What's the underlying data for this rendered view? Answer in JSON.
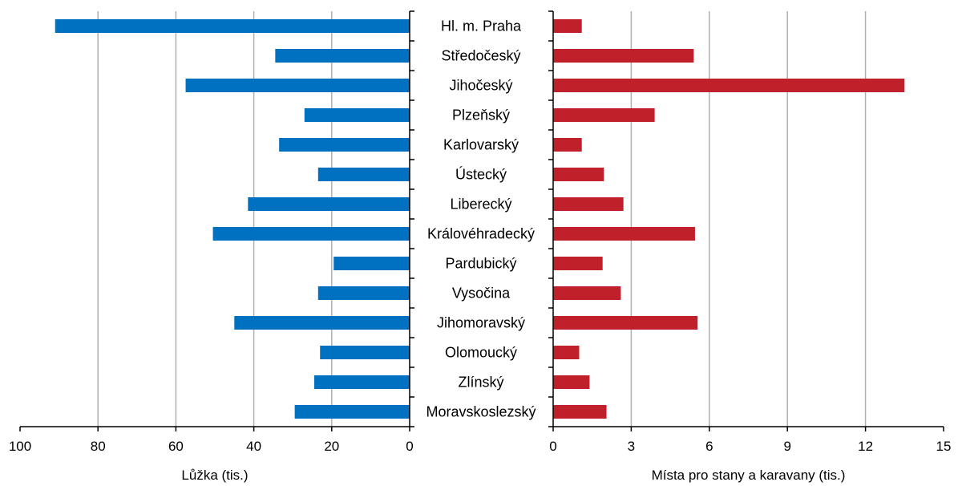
{
  "chart_data": {
    "type": "bar",
    "categories": [
      "Hl. m. Praha",
      "Středočeský",
      "Jihočeský",
      "Plzeňský",
      "Karlovarský",
      "Ústecký",
      "Liberecký",
      "Královéhradecký",
      "Pardubický",
      "Vysočina",
      "Jihomoravský",
      "Olomoucký",
      "Zlínský",
      "Moravskoslezský"
    ],
    "panels": [
      {
        "name": "beds",
        "xlabel": "Lůžka (tis.)",
        "xlim": [
          100,
          0
        ],
        "reversed": true,
        "ticks": [
          100,
          80,
          60,
          40,
          20,
          0
        ],
        "tick_labels": [
          "100",
          "80",
          "60",
          "40",
          "20",
          "0"
        ],
        "color": "#0070C0",
        "values": [
          91,
          34.5,
          57.5,
          27,
          33.5,
          23.5,
          41.5,
          50.5,
          19.5,
          23.5,
          45,
          23,
          24.5,
          29.5
        ]
      },
      {
        "name": "camping",
        "xlabel": "Místa pro stany a karavany (tis.)",
        "xlim": [
          0,
          15
        ],
        "reversed": false,
        "ticks": [
          0,
          3,
          6,
          9,
          12,
          15
        ],
        "tick_labels": [
          "0",
          "3",
          "6",
          "9",
          "12",
          "15"
        ],
        "color": "#C0202A",
        "values": [
          1.1,
          5.4,
          13.5,
          3.9,
          1.1,
          1.95,
          2.7,
          5.45,
          1.9,
          2.6,
          5.55,
          1.0,
          1.4,
          2.05
        ]
      }
    ],
    "grid": true
  }
}
